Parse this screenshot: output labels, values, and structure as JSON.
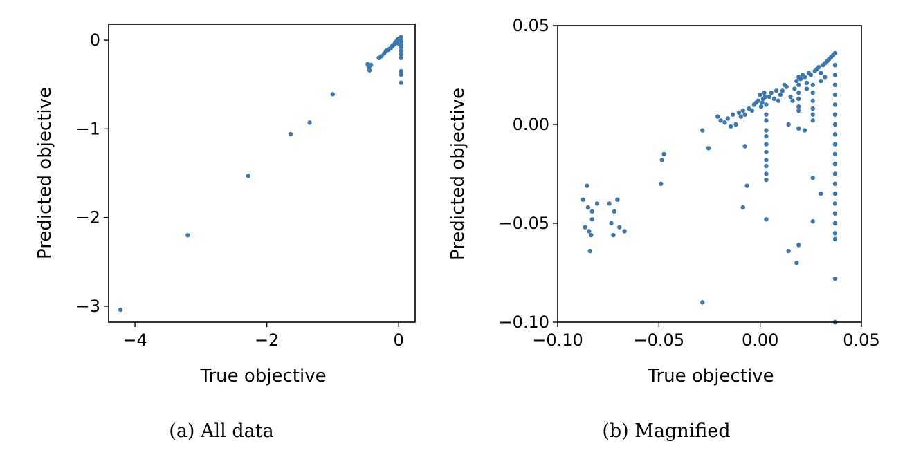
{
  "chart_data": [
    {
      "type": "scatter",
      "caption": "(a) All data",
      "xlabel": "True objective",
      "ylabel": "Predicted objective",
      "xlim": [
        -4.4,
        0.25
      ],
      "ylim": [
        -3.18,
        0.18
      ],
      "xticks": [
        -4,
        -2,
        0
      ],
      "yticks": [
        -3,
        -2,
        -1,
        0
      ],
      "xtick_labels": [
        "−4",
        "−2",
        "0"
      ],
      "ytick_labels": [
        "−3",
        "−2",
        "−1",
        "0"
      ],
      "grid": false,
      "marker_color": "#3b78b0",
      "points": [
        [
          -4.22,
          -3.04
        ],
        [
          -3.2,
          -2.2
        ],
        [
          -2.28,
          -1.53
        ],
        [
          -1.64,
          -1.06
        ],
        [
          -1.35,
          -0.93
        ],
        [
          -1.0,
          -0.61
        ],
        [
          -0.47,
          -0.27
        ],
        [
          -0.46,
          -0.29
        ],
        [
          -0.45,
          -0.31
        ],
        [
          -0.44,
          -0.34
        ],
        [
          -0.42,
          -0.28
        ],
        [
          -0.3,
          -0.2
        ],
        [
          -0.26,
          -0.18
        ],
        [
          -0.22,
          -0.15
        ],
        [
          -0.19,
          -0.12
        ],
        [
          -0.16,
          -0.11
        ],
        [
          -0.14,
          -0.1
        ],
        [
          -0.12,
          -0.09
        ],
        [
          -0.1,
          -0.07
        ],
        [
          -0.09,
          -0.06
        ],
        [
          -0.07,
          -0.05
        ],
        [
          -0.06,
          -0.04
        ],
        [
          -0.05,
          -0.03
        ],
        [
          -0.04,
          -0.02
        ],
        [
          -0.03,
          -0.01
        ],
        [
          -0.02,
          0.0
        ],
        [
          -0.01,
          0.01
        ],
        [
          0.0,
          0.01
        ],
        [
          0.01,
          0.02
        ],
        [
          0.02,
          0.02
        ],
        [
          0.03,
          0.03
        ],
        [
          0.035,
          0.035
        ],
        [
          0.036,
          -0.02
        ],
        [
          0.036,
          -0.05
        ],
        [
          0.036,
          -0.08
        ],
        [
          0.036,
          -0.12
        ],
        [
          0.036,
          -0.16
        ],
        [
          0.036,
          -0.2
        ],
        [
          0.036,
          -0.35
        ],
        [
          0.036,
          -0.39
        ],
        [
          0.036,
          -0.48
        ],
        [
          0.03,
          0.0
        ],
        [
          0.025,
          -0.03
        ],
        [
          0.02,
          0.01
        ],
        [
          0.0,
          -0.04
        ],
        [
          -0.02,
          -0.02
        ]
      ]
    },
    {
      "type": "scatter",
      "caption": "(b) Magnified",
      "xlabel": "True objective",
      "ylabel": "Predicted objective",
      "xlim": [
        -0.1,
        0.05
      ],
      "ylim": [
        -0.1,
        0.05
      ],
      "xticks": [
        -0.1,
        -0.05,
        0.0,
        0.05
      ],
      "yticks": [
        -0.1,
        -0.05,
        0.0,
        0.05
      ],
      "xtick_labels": [
        "−0.10",
        "−0.05",
        "0.00",
        "0.05"
      ],
      "ytick_labels": [
        "−0.10",
        "−0.05",
        "0.00",
        "0.05"
      ],
      "grid": false,
      "marker_color": "#3b78b0",
      "points": [
        [
          -0.0875,
          -0.038
        ],
        [
          -0.0865,
          -0.052
        ],
        [
          -0.0855,
          -0.031
        ],
        [
          -0.085,
          -0.042
        ],
        [
          -0.0845,
          -0.054
        ],
        [
          -0.084,
          -0.064
        ],
        [
          -0.0835,
          -0.056
        ],
        [
          -0.083,
          -0.048
        ],
        [
          -0.083,
          -0.044
        ],
        [
          -0.0805,
          -0.04
        ],
        [
          -0.0745,
          -0.04
        ],
        [
          -0.0735,
          -0.05
        ],
        [
          -0.0725,
          -0.056
        ],
        [
          -0.072,
          -0.044
        ],
        [
          -0.0705,
          -0.038
        ],
        [
          -0.0695,
          -0.052
        ],
        [
          -0.067,
          -0.054
        ],
        [
          -0.049,
          -0.03
        ],
        [
          -0.0485,
          -0.018
        ],
        [
          -0.0475,
          -0.015
        ],
        [
          -0.0285,
          -0.003
        ],
        [
          -0.0285,
          -0.09
        ],
        [
          -0.0255,
          -0.012
        ],
        [
          -0.021,
          0.004
        ],
        [
          -0.0195,
          0.002
        ],
        [
          -0.0175,
          0.001
        ],
        [
          -0.016,
          0.003
        ],
        [
          -0.0145,
          -0.001
        ],
        [
          -0.0135,
          0.005
        ],
        [
          -0.012,
          0.0
        ],
        [
          -0.0105,
          0.006
        ],
        [
          -0.0095,
          0.004
        ],
        [
          -0.0085,
          0.007
        ],
        [
          -0.0085,
          -0.042
        ],
        [
          -0.0075,
          0.005
        ],
        [
          -0.0075,
          -0.011
        ],
        [
          -0.0065,
          -0.031
        ],
        [
          -0.0055,
          0.008
        ],
        [
          -0.004,
          0.007
        ],
        [
          -0.003,
          0.01
        ],
        [
          -0.002,
          0.011
        ],
        [
          -0.001,
          0.012
        ],
        [
          0.0,
          0.015
        ],
        [
          0.0005,
          0.009
        ],
        [
          0.001,
          0.011
        ],
        [
          0.0015,
          0.013
        ],
        [
          0.002,
          0.016
        ],
        [
          0.0025,
          0.014
        ],
        [
          0.003,
          0.01
        ],
        [
          0.003,
          0.005
        ],
        [
          0.003,
          0.002
        ],
        [
          0.003,
          -0.003
        ],
        [
          0.003,
          -0.006
        ],
        [
          0.003,
          -0.01
        ],
        [
          0.003,
          -0.014
        ],
        [
          0.003,
          -0.018
        ],
        [
          0.003,
          -0.021
        ],
        [
          0.003,
          -0.025
        ],
        [
          0.003,
          -0.028
        ],
        [
          0.003,
          -0.048
        ],
        [
          0.0045,
          0.014
        ],
        [
          0.0055,
          0.016
        ],
        [
          0.007,
          0.013
        ],
        [
          0.008,
          0.017
        ],
        [
          0.009,
          0.012
        ],
        [
          0.01,
          0.015
        ],
        [
          0.011,
          0.017
        ],
        [
          0.012,
          0.02
        ],
        [
          0.013,
          0.019
        ],
        [
          0.014,
          0.0
        ],
        [
          0.014,
          -0.064
        ],
        [
          0.015,
          0.014
        ],
        [
          0.016,
          0.012
        ],
        [
          0.017,
          0.018
        ],
        [
          0.018,
          0.022
        ],
        [
          0.018,
          -0.07
        ],
        [
          0.019,
          0.024
        ],
        [
          0.019,
          0.02
        ],
        [
          0.019,
          0.016
        ],
        [
          0.019,
          0.013
        ],
        [
          0.019,
          0.009
        ],
        [
          0.019,
          0.007
        ],
        [
          0.019,
          -0.002
        ],
        [
          0.019,
          -0.061
        ],
        [
          0.02,
          0.023
        ],
        [
          0.021,
          0.025
        ],
        [
          0.022,
          0.024
        ],
        [
          0.022,
          -0.003
        ],
        [
          0.023,
          0.021
        ],
        [
          0.023,
          0.018
        ],
        [
          0.024,
          0.026
        ],
        [
          0.025,
          0.025
        ],
        [
          0.026,
          0.02
        ],
        [
          0.026,
          0.016
        ],
        [
          0.026,
          0.012
        ],
        [
          0.026,
          0.008
        ],
        [
          0.026,
          0.005
        ],
        [
          0.026,
          0.002
        ],
        [
          0.026,
          -0.027
        ],
        [
          0.026,
          -0.049
        ],
        [
          0.027,
          0.027
        ],
        [
          0.028,
          0.028
        ],
        [
          0.029,
          0.029
        ],
        [
          0.03,
          0.026
        ],
        [
          0.03,
          0.022
        ],
        [
          0.03,
          -0.035
        ],
        [
          0.031,
          0.03
        ],
        [
          0.032,
          0.031
        ],
        [
          0.032,
          0.024
        ],
        [
          0.033,
          0.032
        ],
        [
          0.034,
          0.033
        ],
        [
          0.035,
          0.034
        ],
        [
          0.036,
          0.035
        ],
        [
          0.037,
          0.036
        ],
        [
          0.037,
          0.03
        ],
        [
          0.037,
          0.025
        ],
        [
          0.037,
          0.02
        ],
        [
          0.037,
          0.015
        ],
        [
          0.037,
          0.01
        ],
        [
          0.037,
          0.005
        ],
        [
          0.037,
          0.0
        ],
        [
          0.037,
          -0.005
        ],
        [
          0.037,
          -0.01
        ],
        [
          0.037,
          -0.015
        ],
        [
          0.037,
          -0.02
        ],
        [
          0.037,
          -0.025
        ],
        [
          0.037,
          -0.03
        ],
        [
          0.037,
          -0.035
        ],
        [
          0.037,
          -0.04
        ],
        [
          0.037,
          -0.045
        ],
        [
          0.037,
          -0.05
        ],
        [
          0.037,
          -0.055
        ],
        [
          0.037,
          -0.058
        ],
        [
          0.037,
          -0.078
        ],
        [
          0.037,
          -0.1
        ]
      ]
    }
  ]
}
